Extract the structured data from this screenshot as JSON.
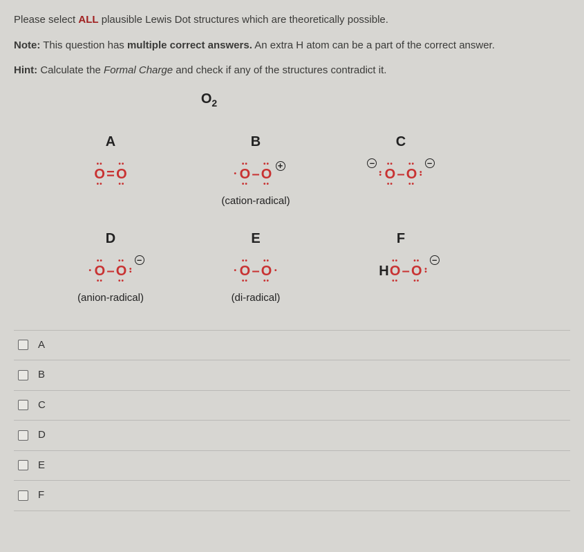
{
  "intro": {
    "line1_pre": "Please select ",
    "line1_all": "ALL",
    "line1_post": " plausible Lewis Dot structures which are theoretically possible.",
    "line2_note": "Note:",
    "line2_mid1": " This question has ",
    "line2_bold": "multiple correct answers.",
    "line2_mid2": " An extra H atom can be a part of the correct answer.",
    "line3_hint": "Hint:",
    "line3_mid1": " Calculate the ",
    "line3_italic": "Formal Charge",
    "line3_mid2": " and check if any of the structures contradict it."
  },
  "molecule": {
    "symbol": "O",
    "subscript": "2"
  },
  "cells": {
    "A": {
      "label": "A",
      "caption": ""
    },
    "B": {
      "label": "B",
      "caption": "(cation-radical)"
    },
    "C": {
      "label": "C",
      "caption": ""
    },
    "D": {
      "label": "D",
      "caption": "(anion-radical)"
    },
    "E": {
      "label": "E",
      "caption": "(di-radical)"
    },
    "F": {
      "label": "F",
      "caption": ""
    }
  },
  "options": [
    "A",
    "B",
    "C",
    "D",
    "E",
    "F"
  ],
  "colors": {
    "background": "#d7d6d2",
    "text": "#3a3a38",
    "atom": "#c83232",
    "emphasis": "#a02020",
    "divider": "rgba(100,100,100,0.25)"
  }
}
